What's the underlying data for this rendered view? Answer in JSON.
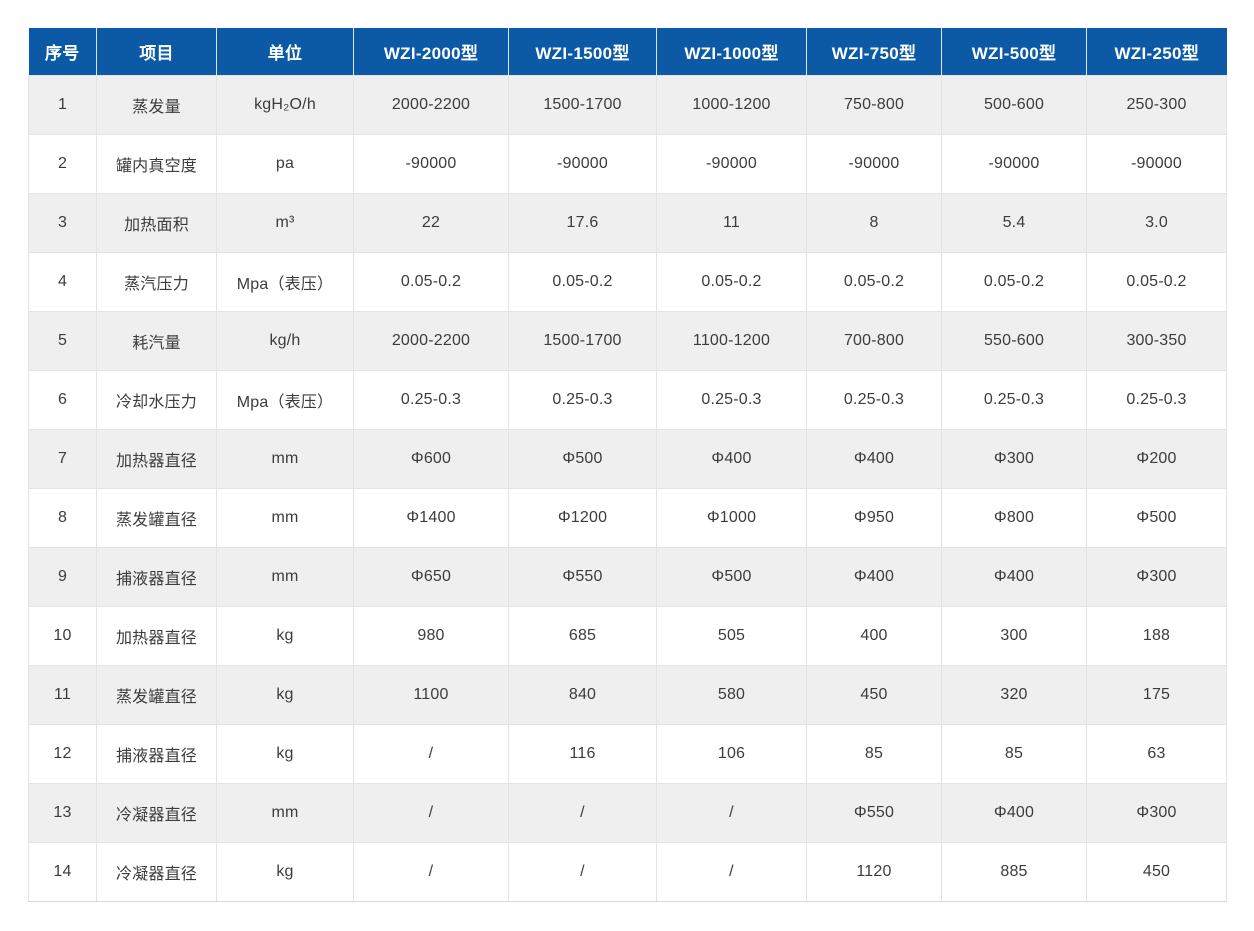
{
  "colors": {
    "header_bg": "#0c5aa5",
    "stripe": "#efefef",
    "border": "#e3e3e3",
    "header_text": "#ffffff",
    "cell_text": "#3c3c3c",
    "page_bg": "#ffffff"
  },
  "table": {
    "columns": [
      "序号",
      "项目",
      "单位",
      "WZI-2000型",
      "WZI-1500型",
      "WZI-1000型",
      "WZI-750型",
      "WZI-500型",
      "WZI-250型"
    ],
    "rows": [
      {
        "no": "1",
        "item": "蒸发量",
        "unit": "kgH₂O/h",
        "values": [
          "2000-2200",
          "1500-1700",
          "1000-1200",
          "750-800",
          "500-600",
          "250-300"
        ]
      },
      {
        "no": "2",
        "item": "罐内真空度",
        "unit": "pa",
        "values": [
          "-90000",
          "-90000",
          "-90000",
          "-90000",
          "-90000",
          "-90000"
        ]
      },
      {
        "no": "3",
        "item": "加热面积",
        "unit": "m³",
        "values": [
          "22",
          "17.6",
          "11",
          "8",
          "5.4",
          "3.0"
        ]
      },
      {
        "no": "4",
        "item": "蒸汽压力",
        "unit": "Mpa（表压）",
        "values": [
          "0.05-0.2",
          "0.05-0.2",
          "0.05-0.2",
          "0.05-0.2",
          "0.05-0.2",
          "0.05-0.2"
        ]
      },
      {
        "no": "5",
        "item": "耗汽量",
        "unit": "kg/h",
        "values": [
          "2000-2200",
          "1500-1700",
          "1100-1200",
          "700-800",
          "550-600",
          "300-350"
        ]
      },
      {
        "no": "6",
        "item": "冷却水压力",
        "unit": "Mpa（表压）",
        "values": [
          "0.25-0.3",
          "0.25-0.3",
          "0.25-0.3",
          "0.25-0.3",
          "0.25-0.3",
          "0.25-0.3"
        ]
      },
      {
        "no": "7",
        "item": "加热器直径",
        "unit": "mm",
        "values": [
          "Φ600",
          "Φ500",
          "Φ400",
          "Φ400",
          "Φ300",
          "Φ200"
        ]
      },
      {
        "no": "8",
        "item": "蒸发罐直径",
        "unit": "mm",
        "values": [
          "Φ1400",
          "Φ1200",
          "Φ1000",
          "Φ950",
          "Φ800",
          "Φ500"
        ]
      },
      {
        "no": "9",
        "item": "捕液器直径",
        "unit": "mm",
        "values": [
          "Φ650",
          "Φ550",
          "Φ500",
          "Φ400",
          "Φ400",
          "Φ300"
        ]
      },
      {
        "no": "10",
        "item": "加热器直径",
        "unit": "kg",
        "values": [
          "980",
          "685",
          "505",
          "400",
          "300",
          "188"
        ]
      },
      {
        "no": "11",
        "item": "蒸发罐直径",
        "unit": "kg",
        "values": [
          "1100",
          "840",
          "580",
          "450",
          "320",
          "175"
        ]
      },
      {
        "no": "12",
        "item": "捕液器直径",
        "unit": "kg",
        "values": [
          "/",
          "116",
          "106",
          "85",
          "85",
          "63"
        ]
      },
      {
        "no": "13",
        "item": "冷凝器直径",
        "unit": "mm",
        "values": [
          "/",
          "/",
          "/",
          "Φ550",
          "Φ400",
          "Φ300"
        ]
      },
      {
        "no": "14",
        "item": "冷凝器直径",
        "unit": "kg",
        "values": [
          "/",
          "/",
          "/",
          "1120",
          "885",
          "450"
        ]
      }
    ]
  }
}
